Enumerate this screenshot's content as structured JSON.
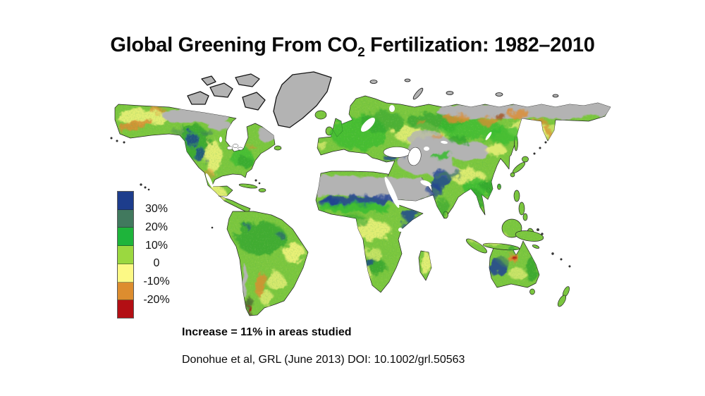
{
  "title": {
    "prefix": "Global Greening From CO",
    "subscript": "2",
    "suffix": " Fertilization: 1982–2010"
  },
  "map": {
    "description": "World map of percent change in green foliage cover 1982-2010; gray indicates areas not studied",
    "no_data_color": "#b3b3b3",
    "ocean_color": "#ffffff",
    "base_land_color": "#7cc73e"
  },
  "legend": {
    "labels": [
      "30%",
      "20%",
      "10%",
      "0",
      "-10%",
      "-20%"
    ],
    "colors": [
      "#1d3d8c",
      "#41795e",
      "#1eb43b",
      "#9bd840",
      "#fcf985",
      "#dd8d2f",
      "#b30f14"
    ]
  },
  "captions": {
    "increase": "Increase = 11% in areas studied",
    "citation": "Donohue et al, GRL (June 2013) DOI: 10.1002/grl.50563"
  }
}
